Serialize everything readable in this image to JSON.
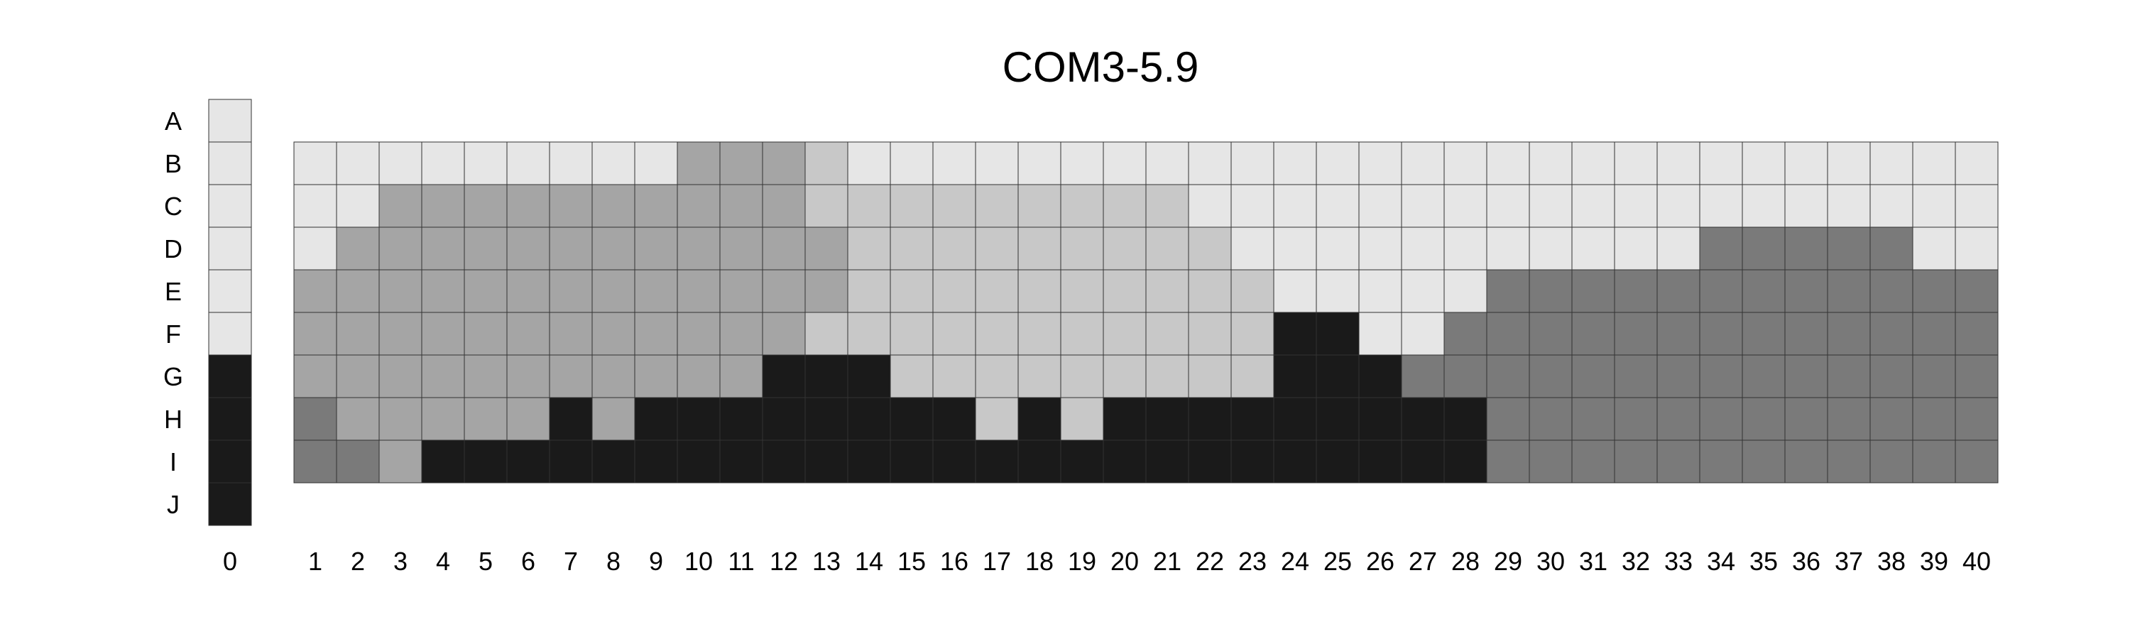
{
  "chart_data": {
    "type": "heatmap",
    "title": "COM3-5.9",
    "row_labels": [
      "A",
      "B",
      "C",
      "D",
      "E",
      "F",
      "G",
      "H",
      "I",
      "J"
    ],
    "column_labels": [
      "0",
      "1",
      "2",
      "3",
      "4",
      "5",
      "6",
      "7",
      "8",
      "9",
      "10",
      "11",
      "12",
      "13",
      "14",
      "15",
      "16",
      "17",
      "18",
      "19",
      "20",
      "21",
      "22",
      "23",
      "24",
      "25",
      "26",
      "27",
      "28",
      "29",
      "30",
      "31",
      "32",
      "33",
      "34",
      "35",
      "36",
      "37",
      "38",
      "39",
      "40"
    ],
    "level_colors": {
      "0": "#e6e6e6",
      "1": "#c8c8c8",
      "2": "#a5a5a5",
      "3": "#7a7a7a",
      "4": "#1a1a1a"
    },
    "reference_column": {
      "column": "0",
      "rows": [
        "A",
        "B",
        "C",
        "D",
        "E",
        "F",
        "G",
        "H",
        "I",
        "J"
      ],
      "levels": [
        0,
        0,
        0,
        0,
        0,
        0,
        4,
        4,
        4,
        4
      ]
    },
    "grid": {
      "rows": [
        "B",
        "C",
        "D",
        "E",
        "F",
        "G",
        "H",
        "I"
      ],
      "columns": [
        "1",
        "2",
        "3",
        "4",
        "5",
        "6",
        "7",
        "8",
        "9",
        "10",
        "11",
        "12",
        "13",
        "14",
        "15",
        "16",
        "17",
        "18",
        "19",
        "20",
        "21",
        "22",
        "23",
        "24",
        "25",
        "26",
        "27",
        "28",
        "29",
        "30",
        "31",
        "32",
        "33",
        "34",
        "35",
        "36",
        "37",
        "38",
        "39",
        "40"
      ],
      "levels": [
        [
          0,
          0,
          0,
          0,
          0,
          0,
          0,
          0,
          0,
          2,
          2,
          2,
          1,
          0,
          0,
          0,
          0,
          0,
          0,
          0,
          0,
          0,
          0,
          0,
          0,
          0,
          0,
          0,
          0,
          0,
          0,
          0,
          0,
          0,
          0,
          0,
          0,
          0,
          0,
          0
        ],
        [
          0,
          0,
          2,
          2,
          2,
          2,
          2,
          2,
          2,
          2,
          2,
          2,
          1,
          1,
          1,
          1,
          1,
          1,
          1,
          1,
          1,
          0,
          0,
          0,
          0,
          0,
          0,
          0,
          0,
          0,
          0,
          0,
          0,
          0,
          0,
          0,
          0,
          0,
          0,
          0
        ],
        [
          0,
          2,
          2,
          2,
          2,
          2,
          2,
          2,
          2,
          2,
          2,
          2,
          2,
          1,
          1,
          1,
          1,
          1,
          1,
          1,
          1,
          1,
          0,
          0,
          0,
          0,
          0,
          0,
          0,
          0,
          0,
          0,
          0,
          3,
          3,
          3,
          3,
          3,
          0,
          0
        ],
        [
          2,
          2,
          2,
          2,
          2,
          2,
          2,
          2,
          2,
          2,
          2,
          2,
          2,
          1,
          1,
          1,
          1,
          1,
          1,
          1,
          1,
          1,
          1,
          0,
          0,
          0,
          0,
          0,
          3,
          3,
          3,
          3,
          3,
          3,
          3,
          3,
          3,
          3,
          3,
          3
        ],
        [
          2,
          2,
          2,
          2,
          2,
          2,
          2,
          2,
          2,
          2,
          2,
          2,
          1,
          1,
          1,
          1,
          1,
          1,
          1,
          1,
          1,
          1,
          1,
          4,
          4,
          0,
          0,
          3,
          3,
          3,
          3,
          3,
          3,
          3,
          3,
          3,
          3,
          3,
          3,
          3
        ],
        [
          2,
          2,
          2,
          2,
          2,
          2,
          2,
          2,
          2,
          2,
          2,
          4,
          4,
          4,
          1,
          1,
          1,
          1,
          1,
          1,
          1,
          1,
          1,
          4,
          4,
          4,
          3,
          3,
          3,
          3,
          3,
          3,
          3,
          3,
          3,
          3,
          3,
          3,
          3,
          3
        ],
        [
          3,
          2,
          2,
          2,
          2,
          2,
          4,
          2,
          4,
          4,
          4,
          4,
          4,
          4,
          4,
          4,
          1,
          4,
          1,
          4,
          4,
          4,
          4,
          4,
          4,
          4,
          4,
          4,
          3,
          3,
          3,
          3,
          3,
          3,
          3,
          3,
          3,
          3,
          3,
          3
        ],
        [
          3,
          3,
          2,
          4,
          4,
          4,
          4,
          4,
          4,
          4,
          4,
          4,
          4,
          4,
          4,
          4,
          4,
          4,
          4,
          4,
          4,
          4,
          4,
          4,
          4,
          4,
          4,
          4,
          3,
          3,
          3,
          3,
          3,
          3,
          3,
          3,
          3,
          3,
          3,
          3
        ]
      ]
    }
  }
}
